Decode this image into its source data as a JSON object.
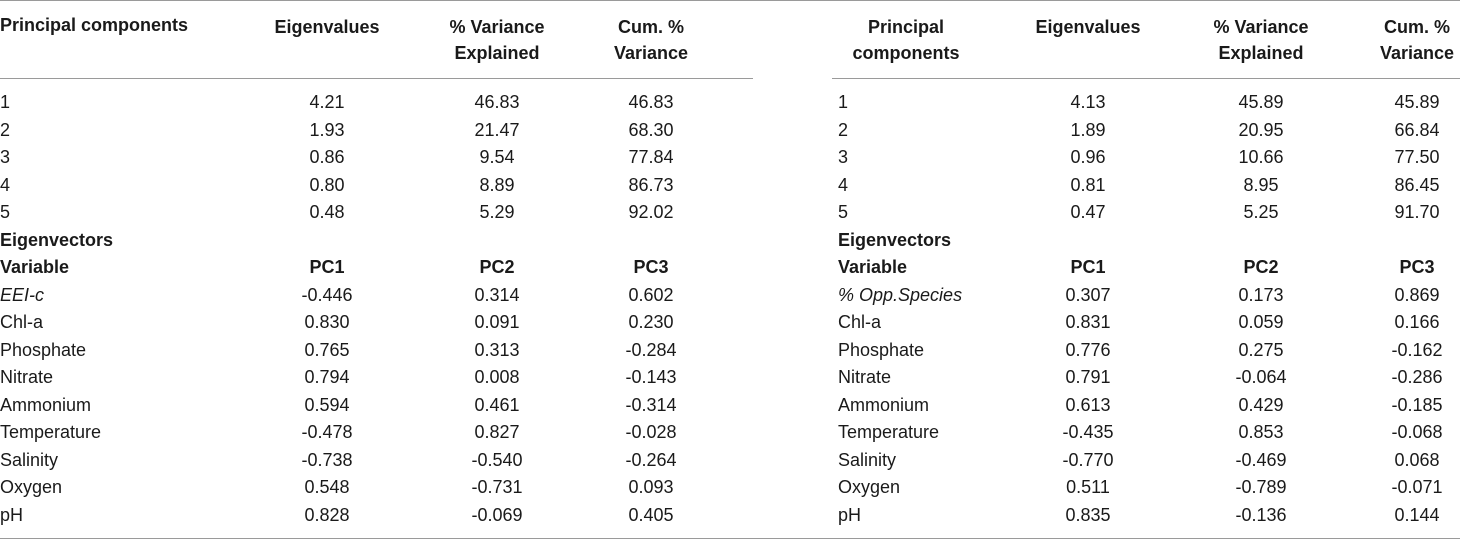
{
  "left": {
    "headers": {
      "pc": "Principal components",
      "eig": "Eigenvalues",
      "var_l1": "% Variance",
      "var_l2": "Explained",
      "cum_l1": "Cum. %",
      "cum_l2": "Variance"
    },
    "components": [
      {
        "pc": "1",
        "eig": "4.21",
        "var": "46.83",
        "cum": "46.83"
      },
      {
        "pc": "2",
        "eig": "1.93",
        "var": "21.47",
        "cum": "68.30"
      },
      {
        "pc": "3",
        "eig": "0.86",
        "var": "9.54",
        "cum": "77.84"
      },
      {
        "pc": "4",
        "eig": "0.80",
        "var": "8.89",
        "cum": "86.73"
      },
      {
        "pc": "5",
        "eig": "0.48",
        "var": "5.29",
        "cum": "92.02"
      }
    ],
    "eigenvectors_label": "Eigenvectors",
    "vec_headers": {
      "variable": "Variable",
      "pc1": "PC1",
      "pc2": "PC2",
      "pc3": "PC3"
    },
    "vectors": [
      {
        "var": "EEI-c",
        "pc1": "-0.446",
        "pc2": "0.314",
        "pc3": "0.602"
      },
      {
        "var": "Chl-a",
        "pc1": "0.830",
        "pc2": "0.091",
        "pc3": "0.230"
      },
      {
        "var": "Phosphate",
        "pc1": "0.765",
        "pc2": "0.313",
        "pc3": "-0.284"
      },
      {
        "var": "Nitrate",
        "pc1": "0.794",
        "pc2": "0.008",
        "pc3": "-0.143"
      },
      {
        "var": "Ammonium",
        "pc1": "0.594",
        "pc2": "0.461",
        "pc3": "-0.314"
      },
      {
        "var": "Temperature",
        "pc1": "-0.478",
        "pc2": "0.827",
        "pc3": "-0.028"
      },
      {
        "var": "Salinity",
        "pc1": "-0.738",
        "pc2": "-0.540",
        "pc3": "-0.264"
      },
      {
        "var": "Oxygen",
        "pc1": "0.548",
        "pc2": "-0.731",
        "pc3": "0.093"
      },
      {
        "var": "pH",
        "pc1": "0.828",
        "pc2": "-0.069",
        "pc3": "0.405"
      }
    ]
  },
  "right": {
    "headers": {
      "pc_l1": "Principal",
      "pc_l2": "components",
      "eig": "Eigenvalues",
      "var_l1": "% Variance",
      "var_l2": "Explained",
      "cum_l1": "Cum. %",
      "cum_l2": "Variance"
    },
    "components": [
      {
        "pc": "1",
        "eig": "4.13",
        "var": "45.89",
        "cum": "45.89"
      },
      {
        "pc": "2",
        "eig": "1.89",
        "var": "20.95",
        "cum": "66.84"
      },
      {
        "pc": "3",
        "eig": "0.96",
        "var": "10.66",
        "cum": "77.50"
      },
      {
        "pc": "4",
        "eig": "0.81",
        "var": "8.95",
        "cum": "86.45"
      },
      {
        "pc": "5",
        "eig": "0.47",
        "var": "5.25",
        "cum": "91.70"
      }
    ],
    "eigenvectors_label": "Eigenvectors",
    "vec_headers": {
      "variable": "Variable",
      "pc1": "PC1",
      "pc2": "PC2",
      "pc3": "PC3"
    },
    "vectors": [
      {
        "var": "% Opp.Species",
        "pc1": "0.307",
        "pc2": "0.173",
        "pc3": "0.869"
      },
      {
        "var": "Chl-a",
        "pc1": "0.831",
        "pc2": "0.059",
        "pc3": "0.166"
      },
      {
        "var": "Phosphate",
        "pc1": "0.776",
        "pc2": "0.275",
        "pc3": "-0.162"
      },
      {
        "var": "Nitrate",
        "pc1": "0.791",
        "pc2": "-0.064",
        "pc3": "-0.286"
      },
      {
        "var": "Ammonium",
        "pc1": "0.613",
        "pc2": "0.429",
        "pc3": "-0.185"
      },
      {
        "var": "Temperature",
        "pc1": "-0.435",
        "pc2": "0.853",
        "pc3": "-0.068"
      },
      {
        "var": "Salinity",
        "pc1": "-0.770",
        "pc2": "-0.469",
        "pc3": "0.068"
      },
      {
        "var": "Oxygen",
        "pc1": "0.511",
        "pc2": "-0.789",
        "pc3": "-0.071"
      },
      {
        "var": "pH",
        "pc1": "0.835",
        "pc2": "-0.136",
        "pc3": "0.144"
      }
    ]
  }
}
